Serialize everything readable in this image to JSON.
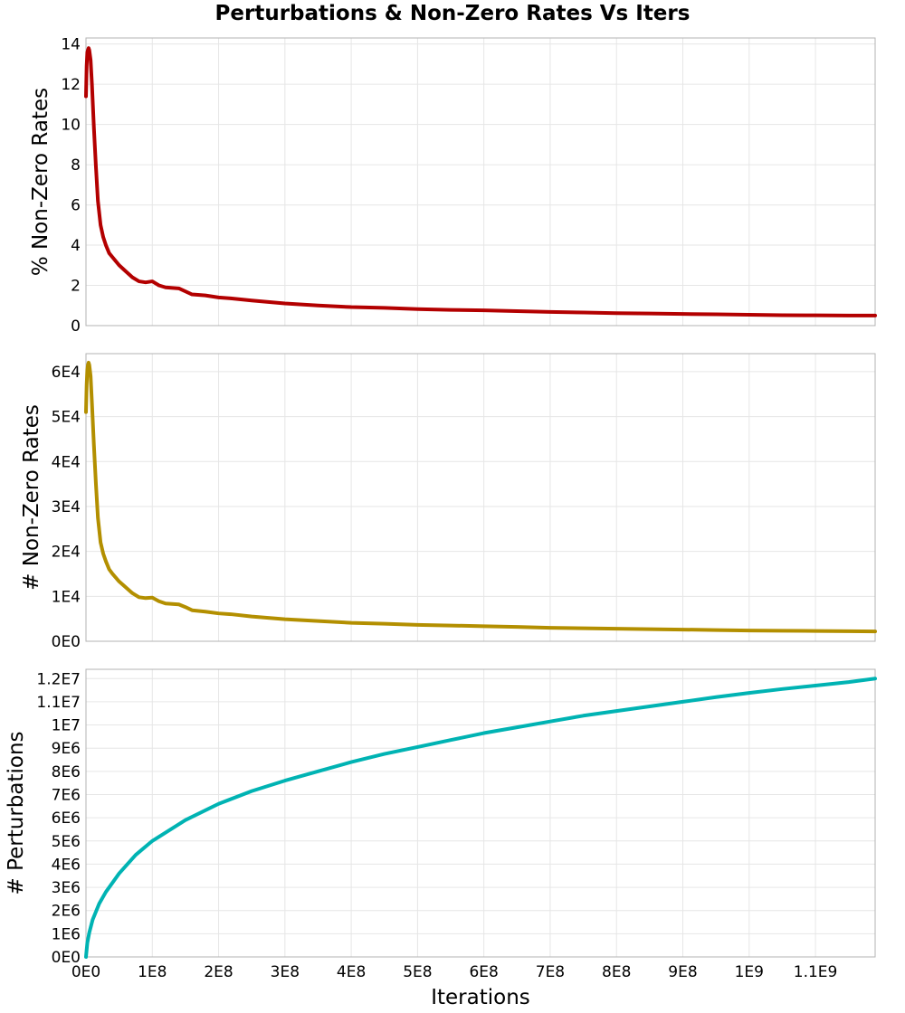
{
  "chart_data": [
    {
      "type": "line",
      "title": "Perturbations & Non-Zero Rates Vs Iters",
      "ylabel": "% Non-Zero Rates",
      "xlabel": "",
      "color": "#b30000",
      "xlim": [
        0,
        1190000000
      ],
      "ylim": [
        0,
        14.3
      ],
      "yticks": [
        0,
        2,
        4,
        6,
        8,
        10,
        12,
        14
      ],
      "ytick_labels": [
        "0",
        "2",
        "4",
        "6",
        "8",
        "10",
        "12",
        "14"
      ],
      "grid": true,
      "series": [
        {
          "name": "% Non-Zero Rates",
          "x": [
            0,
            1000000,
            2000000,
            3000000,
            4000000,
            5000000,
            7000000,
            9000000,
            12000000,
            15000000,
            18000000,
            22000000,
            26000000,
            30000000,
            35000000,
            40000000,
            50000000,
            60000000,
            70000000,
            80000000,
            90000000,
            100000000,
            110000000,
            120000000,
            140000000,
            150000000,
            160000000,
            180000000,
            200000000,
            220000000,
            250000000,
            300000000,
            350000000,
            400000000,
            450000000,
            500000000,
            550000000,
            600000000,
            650000000,
            700000000,
            750000000,
            800000000,
            850000000,
            900000000,
            950000000,
            1000000000,
            1050000000,
            1100000000,
            1150000000,
            1190000000
          ],
          "y": [
            11.4,
            12.9,
            13.6,
            13.7,
            13.8,
            13.7,
            13.2,
            12.0,
            9.8,
            7.9,
            6.2,
            5.0,
            4.4,
            4.0,
            3.6,
            3.4,
            3.0,
            2.7,
            2.4,
            2.2,
            2.15,
            2.2,
            2.0,
            1.9,
            1.85,
            1.7,
            1.55,
            1.5,
            1.4,
            1.35,
            1.25,
            1.1,
            1.0,
            0.92,
            0.88,
            0.82,
            0.78,
            0.76,
            0.72,
            0.68,
            0.65,
            0.62,
            0.6,
            0.58,
            0.56,
            0.54,
            0.52,
            0.51,
            0.5,
            0.5
          ]
        }
      ]
    },
    {
      "type": "line",
      "title": "",
      "ylabel": "# Non-Zero Rates",
      "xlabel": "",
      "color": "#b38f00",
      "xlim": [
        0,
        1190000000
      ],
      "ylim": [
        0,
        64000
      ],
      "yticks": [
        0,
        10000,
        20000,
        30000,
        40000,
        50000,
        60000
      ],
      "ytick_labels": [
        "0E0",
        "1E4",
        "2E4",
        "3E4",
        "4E4",
        "5E4",
        "6E4"
      ],
      "grid": true,
      "series": [
        {
          "name": "# Non-Zero Rates",
          "x": [
            0,
            1000000,
            2000000,
            3000000,
            4000000,
            5000000,
            7000000,
            9000000,
            12000000,
            15000000,
            18000000,
            22000000,
            26000000,
            30000000,
            35000000,
            40000000,
            50000000,
            60000000,
            70000000,
            80000000,
            90000000,
            100000000,
            110000000,
            120000000,
            140000000,
            150000000,
            160000000,
            180000000,
            200000000,
            220000000,
            250000000,
            300000000,
            350000000,
            400000000,
            450000000,
            500000000,
            550000000,
            600000000,
            650000000,
            700000000,
            750000000,
            800000000,
            850000000,
            900000000,
            950000000,
            1000000000,
            1050000000,
            1100000000,
            1150000000,
            1190000000
          ],
          "y": [
            51000,
            57000,
            60500,
            61500,
            62000,
            61500,
            59000,
            53000,
            43500,
            35000,
            27500,
            22000,
            19500,
            17800,
            16000,
            15000,
            13300,
            12000,
            10700,
            9800,
            9600,
            9700,
            8900,
            8400,
            8200,
            7600,
            6900,
            6600,
            6200,
            6000,
            5500,
            4900,
            4500,
            4100,
            3900,
            3650,
            3500,
            3350,
            3200,
            3000,
            2900,
            2800,
            2700,
            2600,
            2500,
            2400,
            2350,
            2300,
            2250,
            2200
          ]
        }
      ]
    },
    {
      "type": "line",
      "title": "",
      "ylabel": "# Perturbations",
      "xlabel": "Iterations",
      "color": "#00b3b3",
      "xlim": [
        0,
        1190000000
      ],
      "ylim": [
        0,
        12400000
      ],
      "yticks": [
        0,
        1000000,
        2000000,
        3000000,
        4000000,
        5000000,
        6000000,
        7000000,
        8000000,
        9000000,
        10000000,
        11000000,
        12000000
      ],
      "ytick_labels": [
        "0E0",
        "1E6",
        "2E6",
        "3E6",
        "4E6",
        "5E6",
        "6E6",
        "7E6",
        "8E6",
        "9E6",
        "1E7",
        "1.1E7",
        "1.2E7"
      ],
      "xticks": [
        0,
        100000000,
        200000000,
        300000000,
        400000000,
        500000000,
        600000000,
        700000000,
        800000000,
        900000000,
        1000000000,
        1100000000
      ],
      "xtick_labels": [
        "0E0",
        "1E8",
        "2E8",
        "3E8",
        "4E8",
        "5E8",
        "6E8",
        "7E8",
        "8E8",
        "9E8",
        "1E9",
        "1.1E9"
      ],
      "grid": true,
      "series": [
        {
          "name": "# Perturbations",
          "x": [
            0,
            2000000,
            5000000,
            10000000,
            20000000,
            30000000,
            50000000,
            75000000,
            100000000,
            150000000,
            200000000,
            250000000,
            300000000,
            350000000,
            400000000,
            450000000,
            500000000,
            550000000,
            600000000,
            650000000,
            700000000,
            750000000,
            800000000,
            850000000,
            900000000,
            950000000,
            1000000000,
            1050000000,
            1100000000,
            1150000000,
            1190000000
          ],
          "y": [
            0,
            600000,
            1050000,
            1600000,
            2300000,
            2800000,
            3600000,
            4400000,
            5000000,
            5900000,
            6600000,
            7150000,
            7600000,
            8000000,
            8400000,
            8750000,
            9050000,
            9350000,
            9650000,
            9900000,
            10150000,
            10400000,
            10600000,
            10800000,
            11000000,
            11200000,
            11380000,
            11550000,
            11700000,
            11850000,
            12000000
          ]
        }
      ]
    }
  ]
}
